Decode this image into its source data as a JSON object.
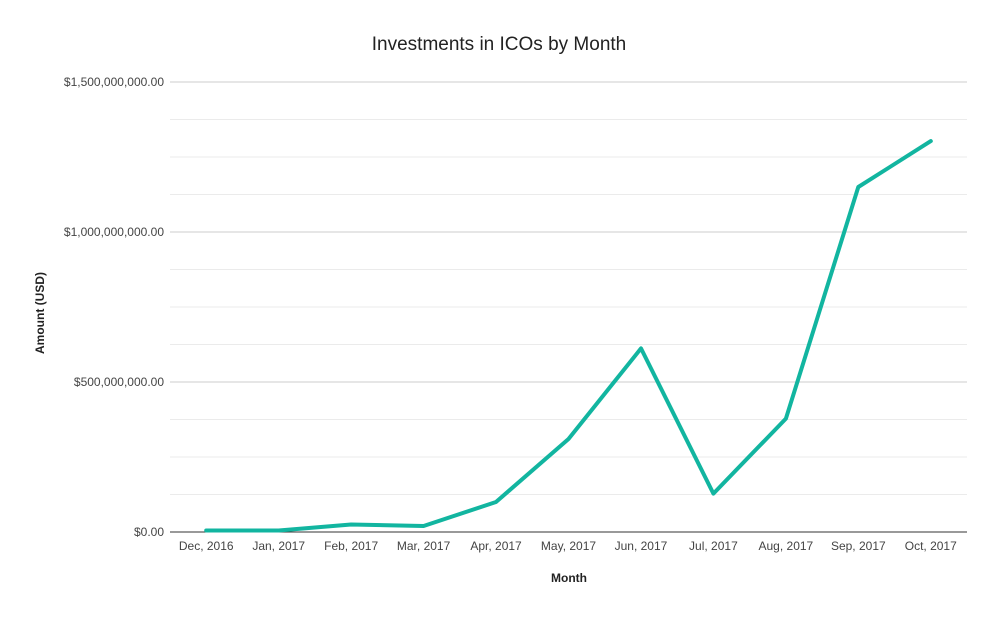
{
  "chart_data": {
    "type": "line",
    "title": "Investments in ICOs by Month",
    "xlabel": "Month",
    "ylabel": "Amount (USD)",
    "categories": [
      "Dec, 2016",
      "Jan, 2017",
      "Feb, 2017",
      "Mar, 2017",
      "Apr, 2017",
      "May, 2017",
      "Jun, 2017",
      "Jul, 2017",
      "Aug, 2017",
      "Sep, 2017",
      "Oct, 2017"
    ],
    "series": [
      {
        "values": [
          5000000,
          5000000,
          25000000,
          20000000,
          100000000,
          310000000,
          612000000,
          128000000,
          378000000,
          1150000000,
          1303000000
        ],
        "color": "#12b5a0"
      }
    ],
    "ylim": [
      0,
      1500000000
    ],
    "yticks": [
      0,
      500000000,
      1000000000,
      1500000000
    ],
    "ytick_labels": [
      "$0.00",
      "$500,000,000.00",
      "$1,000,000,000.00",
      "$1,500,000,000.00"
    ],
    "grid": true,
    "legend": "none"
  }
}
